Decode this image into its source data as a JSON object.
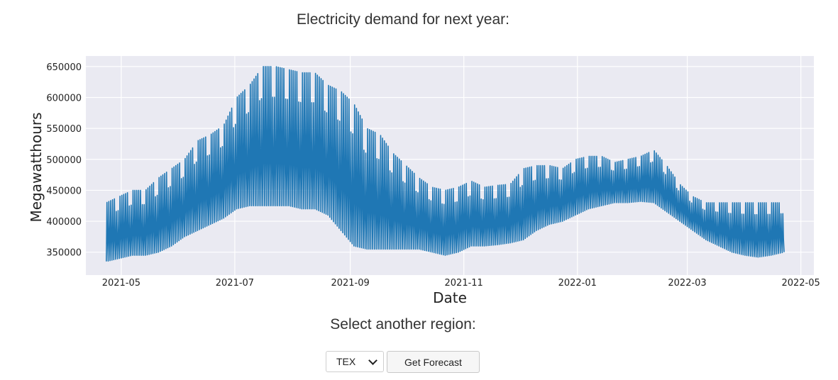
{
  "page": {
    "title": "Electricity demand for next year:",
    "region_prompt": "Select another region:"
  },
  "controls": {
    "region_value": "TEX",
    "forecast_label": "Get Forecast"
  },
  "colors": {
    "series": "#1f77b4",
    "plot_bg": "#eaeaf2",
    "grid": "#ffffff"
  },
  "chart_data": {
    "type": "line",
    "title": "",
    "xlabel": "Date",
    "ylabel": "Megawatthours",
    "grid": true,
    "legend": "none",
    "xlim": [
      "2021-04-12",
      "2022-05-08"
    ],
    "ylim": [
      313000,
      667000
    ],
    "x_ticks": [
      "2021-05",
      "2021-07",
      "2021-09",
      "2021-11",
      "2022-01",
      "2022-03",
      "2022-05"
    ],
    "y_ticks": [
      350000,
      400000,
      450000,
      500000,
      550000,
      600000,
      650000
    ],
    "series": [
      {
        "name": "",
        "x": [
          "2021-04-23",
          "2021-04-30",
          "2021-05-07",
          "2021-05-14",
          "2021-05-21",
          "2021-05-28",
          "2021-06-04",
          "2021-06-11",
          "2021-06-18",
          "2021-06-25",
          "2021-07-02",
          "2021-07-09",
          "2021-07-16",
          "2021-07-23",
          "2021-07-30",
          "2021-08-06",
          "2021-08-13",
          "2021-08-20",
          "2021-08-27",
          "2021-09-03",
          "2021-09-10",
          "2021-09-17",
          "2021-09-24",
          "2021-10-01",
          "2021-10-08",
          "2021-10-15",
          "2021-10-22",
          "2021-10-29",
          "2021-11-05",
          "2021-11-12",
          "2021-11-19",
          "2021-11-26",
          "2021-12-03",
          "2021-12-10",
          "2021-12-17",
          "2021-12-24",
          "2021-12-31",
          "2022-01-07",
          "2022-01-14",
          "2022-01-21",
          "2022-01-28",
          "2022-02-04",
          "2022-02-11",
          "2022-02-18",
          "2022-02-25",
          "2022-03-04",
          "2022-03-11",
          "2022-03-18",
          "2022-03-25",
          "2022-04-01",
          "2022-04-08",
          "2022-04-15",
          "2022-04-22"
        ],
        "high": [
          430000,
          440000,
          450000,
          450000,
          470000,
          485000,
          500000,
          530000,
          540000,
          555000,
          600000,
          620000,
          650000,
          650000,
          645000,
          640000,
          640000,
          620000,
          610000,
          590000,
          550000,
          540000,
          510000,
          490000,
          470000,
          455000,
          450000,
          455000,
          465000,
          455000,
          458000,
          460000,
          485000,
          490000,
          490000,
          485000,
          500000,
          505000,
          505000,
          495000,
          500000,
          505000,
          515000,
          490000,
          460000,
          440000,
          430000,
          430000,
          430000,
          430000,
          430000,
          430000,
          430000
        ],
        "low": [
          335000,
          340000,
          345000,
          345000,
          350000,
          360000,
          375000,
          385000,
          395000,
          405000,
          420000,
          425000,
          425000,
          425000,
          425000,
          420000,
          420000,
          410000,
          385000,
          360000,
          355000,
          355000,
          355000,
          355000,
          355000,
          350000,
          345000,
          350000,
          360000,
          360000,
          362000,
          365000,
          370000,
          385000,
          395000,
          400000,
          410000,
          420000,
          425000,
          430000,
          430000,
          432000,
          430000,
          415000,
          400000,
          385000,
          370000,
          360000,
          350000,
          345000,
          342000,
          345000,
          350000
        ]
      }
    ]
  }
}
